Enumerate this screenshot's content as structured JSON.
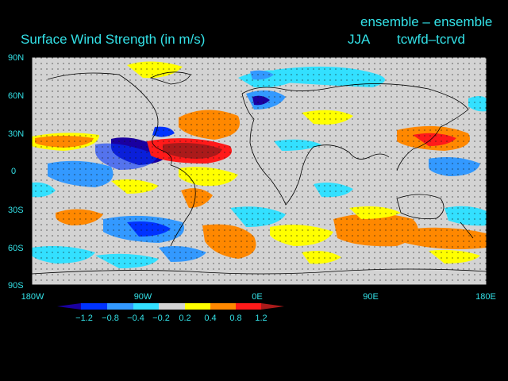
{
  "header": {
    "title": "Surface Wind Strength (in m/s)",
    "subtitle": "ensemble – ensemble",
    "season": "JJA",
    "experiment": "tcwfd–tcrvd"
  },
  "lat_labels": [
    "90N",
    "60N",
    "30N",
    "0",
    "30S",
    "60S",
    "90S"
  ],
  "lon_labels": [
    "180W",
    "90W",
    "0E",
    "90E",
    "180E"
  ],
  "colorbar": {
    "labels": [
      "−1.2",
      "−0.8",
      "−0.4",
      "−0.2",
      "0.2",
      "0.4",
      "0.8",
      "1.2"
    ],
    "colors": [
      "#1a00a0",
      "#0033ff",
      "#3399ff",
      "#33e0ff",
      "#d3d3d3",
      "#ffff00",
      "#ff8800",
      "#ff1a1a",
      "#aa1a1a"
    ]
  }
}
